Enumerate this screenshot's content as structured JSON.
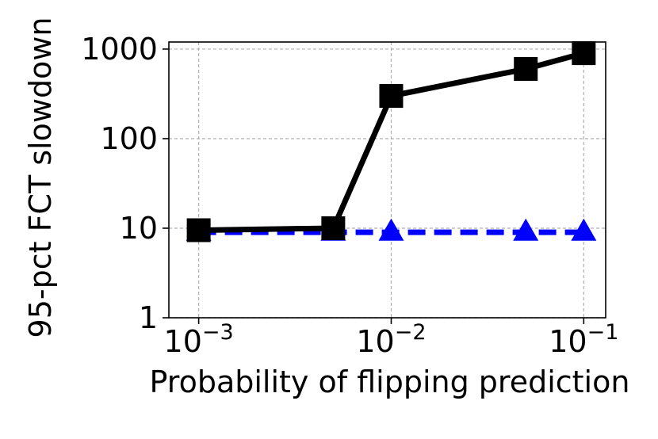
{
  "chart_data": {
    "type": "line",
    "title": "",
    "xlabel": "Probability of flipping prediction",
    "ylabel": "95-pct FCT slowdown",
    "xscale": "log",
    "yscale": "log",
    "xlim": [
      0.0007,
      0.13
    ],
    "ylim": [
      1,
      1200
    ],
    "xticks": [
      {
        "value": 0.001,
        "base": "10",
        "exp": "−3"
      },
      {
        "value": 0.01,
        "base": "10",
        "exp": "−2"
      },
      {
        "value": 0.1,
        "base": "10",
        "exp": "−1"
      }
    ],
    "yticks": [
      {
        "value": 1,
        "label": "1"
      },
      {
        "value": 10,
        "label": "10"
      },
      {
        "value": 100,
        "label": "100"
      },
      {
        "value": 1000,
        "label": "1000"
      }
    ],
    "grid": true,
    "legend": "none",
    "series": [
      {
        "color": "#0000ff",
        "linestyle": "dashed",
        "marker": "triangle",
        "x": [
          0.001,
          0.005,
          0.01,
          0.05,
          0.1
        ],
        "y": [
          9,
          9,
          9,
          9,
          9
        ]
      },
      {
        "color": "#000000",
        "linestyle": "solid",
        "marker": "square",
        "x": [
          0.001,
          0.005,
          0.01,
          0.05,
          0.1
        ],
        "y": [
          9.5,
          10,
          300,
          600,
          900
        ]
      }
    ]
  }
}
